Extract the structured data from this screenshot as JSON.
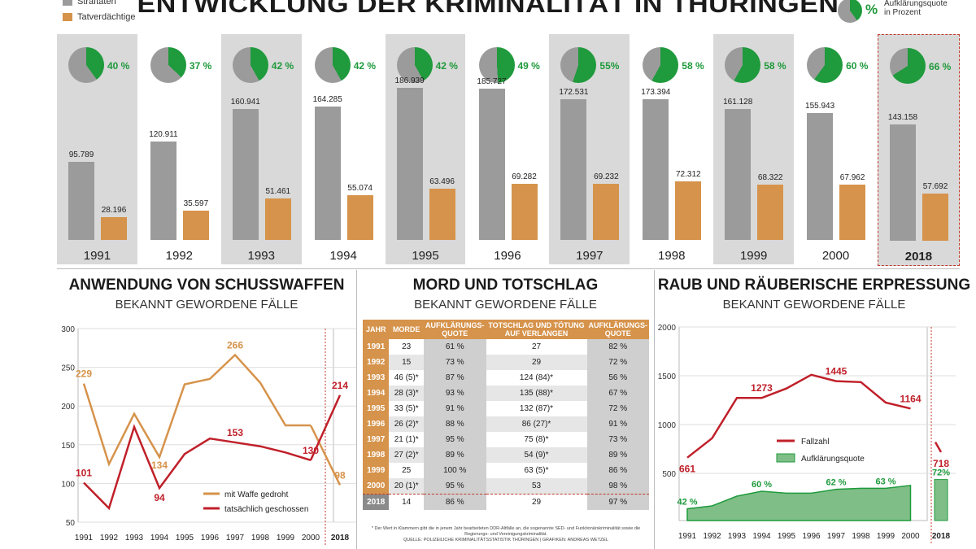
{
  "title": "ENTWICKLUNG DER KRIMINALITÄT IN THÜRINGEN",
  "legend": {
    "straftaten": "Straftaten",
    "tatverdaechtige": "Tatverdächtige",
    "pct_symbol": "%",
    "quote_label_1": "Aufklärungsquote",
    "quote_label_2": "in Prozent"
  },
  "colors": {
    "gray": "#9b9b9b",
    "orange": "#d6934b",
    "green": "#1f9a3c",
    "red": "#c0202a",
    "shade": "#d9d9d9"
  },
  "chart_data": [
    {
      "type": "bar",
      "categories": [
        "1991",
        "1992",
        "1993",
        "1994",
        "1995",
        "1996",
        "1997",
        "1998",
        "1999",
        "2000",
        "2018"
      ],
      "series": [
        {
          "name": "Straftaten",
          "values": [
            95789,
            120911,
            160941,
            164285,
            186939,
            185727,
            172531,
            173394,
            161128,
            155943,
            143158
          ],
          "labels": [
            "95.789",
            "120.911",
            "160.941",
            "164.285",
            "186.939",
            "185.727",
            "172.531",
            "173.394",
            "161.128",
            "155.943",
            "143.158"
          ]
        },
        {
          "name": "Tatverdächtige",
          "values": [
            28196,
            35597,
            51461,
            55074,
            63496,
            69282,
            69232,
            72312,
            68322,
            67962,
            57692
          ],
          "labels": [
            "28.196",
            "35.597",
            "51.461",
            "55.074",
            "63.496",
            "69.282",
            "69.232",
            "72.312",
            "68.322",
            "67.962",
            "57.692"
          ]
        }
      ],
      "quote": {
        "values": [
          40,
          37,
          42,
          42,
          42,
          49,
          55,
          58,
          58,
          60,
          66
        ],
        "labels": [
          "40 %",
          "37 %",
          "42 %",
          "42 %",
          "42 %",
          "49 %",
          "55%",
          "58 %",
          "58 %",
          "60 %",
          "66 %"
        ]
      },
      "shaded": [
        true,
        false,
        true,
        false,
        true,
        false,
        true,
        false,
        true,
        false,
        true
      ]
    },
    {
      "type": "line",
      "title": "ANWENDUNG VON SCHUSSWAFFEN",
      "subtitle": "BEKANNT GEWORDENE FÄLLE",
      "x": [
        "1991",
        "1992",
        "1993",
        "1994",
        "1995",
        "1996",
        "1997",
        "1998",
        "1999",
        "2000",
        "2018"
      ],
      "yticks": [
        "300",
        "250",
        "200",
        "150",
        "100",
        "50"
      ],
      "ylim": [
        50,
        300
      ],
      "series": [
        {
          "name": "mit Waffe gedroht",
          "values": [
            229,
            125,
            190,
            134,
            228,
            235,
            266,
            230,
            175,
            175,
            98
          ],
          "labels": {
            "0": "229",
            "3": "134",
            "6": "266",
            "10": "98"
          }
        },
        {
          "name": "tatsächlich geschossen",
          "values": [
            101,
            68,
            173,
            94,
            138,
            158,
            153,
            148,
            140,
            130,
            214
          ],
          "labels": {
            "0": "101",
            "3": "94",
            "6": "153",
            "9": "130",
            "10": "214"
          }
        }
      ]
    },
    {
      "type": "table",
      "title": "MORD UND TOTSCHLAG",
      "subtitle": "BEKANNT GEWORDENE FÄLLE",
      "headers": [
        "JAHR",
        "MORDE",
        "AUFKLÄRUNGS-QUOTE",
        "TOTSCHLAG UND TÖTUNG AUF VERLANGEN",
        "AUFKLÄRUNGS-QUOTE"
      ],
      "rows": [
        [
          "1991",
          "23",
          "61 %",
          "27",
          "82 %"
        ],
        [
          "1992",
          "15",
          "73 %",
          "29",
          "72 %"
        ],
        [
          "1993",
          "46 (5)*",
          "87 %",
          "124 (84)*",
          "56 %"
        ],
        [
          "1994",
          "28 (3)*",
          "93 %",
          "135 (88)*",
          "67 %"
        ],
        [
          "1995",
          "33 (5)*",
          "91 %",
          "132 (87)*",
          "72 %"
        ],
        [
          "1996",
          "26 (2)*",
          "88 %",
          "86 (27)*",
          "91 %"
        ],
        [
          "1997",
          "21 (1)*",
          "95 %",
          "75 (8)*",
          "73 %"
        ],
        [
          "1998",
          "27 (2)*",
          "89 %",
          "54 (9)*",
          "89 %"
        ],
        [
          "1999",
          "25",
          "100 %",
          "63 (5)*",
          "86 %"
        ],
        [
          "2000",
          "20 (1)*",
          "95 %",
          "53",
          "98 %"
        ],
        [
          "2018",
          "14",
          "86 %",
          "29",
          "97 %"
        ]
      ],
      "footnote": "* Der Wert in Klammern gibt die in jenem Jahr bearbeiteten DDR-Altfälle an, die sogenannte SED- und Funktionärskriminalität sowie die Regierungs- und Vereinigungskriminalität.",
      "source": "QUELLE: POLIZEILICHE KRIMINALITÄTSSTATISTIK THÜRINGEN | GRAFIKEN: ANDREAS WETZEL"
    },
    {
      "type": "line",
      "title": "RAUB UND RÄUBERISCHE ERPRESSUNG",
      "subtitle": "BEKANNT GEWORDENE FÄLLE",
      "x": [
        "1991",
        "1992",
        "1993",
        "1994",
        "1995",
        "1996",
        "1997",
        "1998",
        "1999",
        "2000",
        "2018"
      ],
      "yticks": [
        "2000",
        "1500",
        "1000",
        "500"
      ],
      "ylim": [
        500,
        2000
      ],
      "series": [
        {
          "name": "Fallzahl",
          "values": [
            661,
            860,
            1273,
            1273,
            1370,
            1510,
            1445,
            1435,
            1225,
            1164,
            718
          ],
          "labels": {
            "0": "661",
            "3": "1273",
            "6": "1445",
            "9": "1164",
            "10": "718"
          }
        },
        {
          "name": "Aufklärungsquote",
          "values": [
            42,
            45,
            55,
            60,
            58,
            58,
            62,
            63,
            63,
            66,
            72
          ],
          "labels": {
            "0": "42 %",
            "3": "60 %",
            "6": "62 %",
            "8": "63 %",
            "10": "72%"
          }
        }
      ]
    }
  ]
}
